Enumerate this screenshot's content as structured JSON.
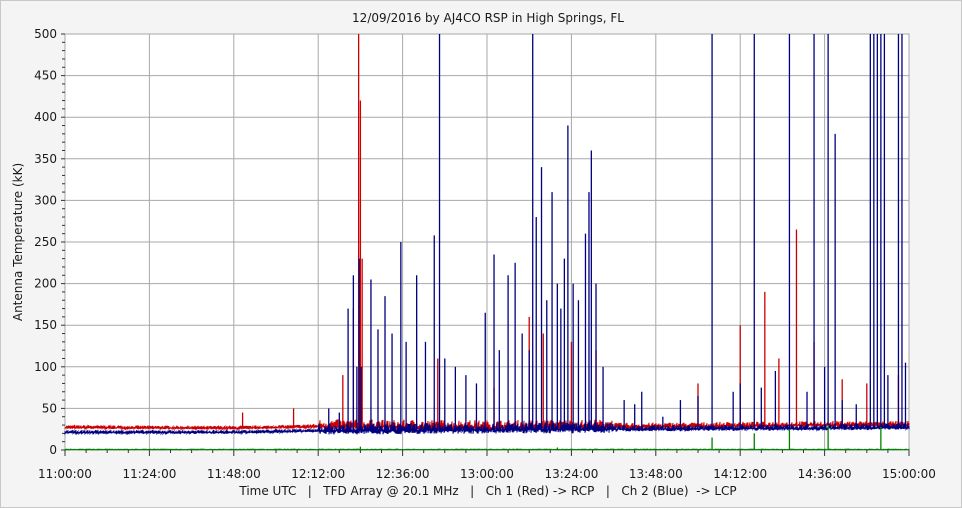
{
  "chart_data": {
    "type": "line",
    "title": "12/09/2016  by  AJ4CO RSP  in  High Springs, FL",
    "ylabel": "Antenna Temperature (kK)",
    "xlabel": "Time UTC   |   TFD Array @ 20.1 MHz   |   Ch 1 (Red) -> RCP   |   Ch 2 (Blue)  -> LCP",
    "ylim": [
      0,
      500
    ],
    "xlim": [
      "11:00:00",
      "15:00:00"
    ],
    "y_ticks": [
      "0",
      "50",
      "100",
      "150",
      "200",
      "250",
      "300",
      "350",
      "400",
      "450",
      "500"
    ],
    "x_ticks": [
      "11:00:00",
      "11:24:00",
      "11:48:00",
      "12:12:00",
      "12:36:00",
      "13:00:00",
      "13:24:00",
      "13:48:00",
      "14:12:00",
      "14:36:00",
      "15:00:00"
    ],
    "grid": true,
    "series": [
      {
        "name": "Ch 1 (Red)",
        "color": "#cc0000",
        "baseline": [
          [
            "11:00:00",
            27
          ],
          [
            "11:48:00",
            26
          ],
          [
            "12:12:00",
            28
          ],
          [
            "13:00:00",
            27
          ],
          [
            "13:48:00",
            28
          ],
          [
            "14:36:00",
            30
          ],
          [
            "15:00:00",
            30
          ]
        ],
        "bursts": [
          [
            "11:50:30",
            45
          ],
          [
            "12:05:00",
            50
          ],
          [
            "12:19:00",
            90
          ],
          [
            "12:22:00",
            170
          ],
          [
            "12:23:30",
            500
          ],
          [
            "12:24:00",
            420
          ],
          [
            "12:24:30",
            230
          ],
          [
            "12:46:00",
            110
          ],
          [
            "13:02:00",
            75
          ],
          [
            "13:12:00",
            160
          ],
          [
            "13:16:00",
            140
          ],
          [
            "13:24:00",
            130
          ],
          [
            "13:31:00",
            120
          ],
          [
            "14:00:00",
            80
          ],
          [
            "14:12:00",
            150
          ],
          [
            "14:19:00",
            190
          ],
          [
            "14:23:00",
            110
          ],
          [
            "14:28:00",
            265
          ],
          [
            "14:33:00",
            130
          ],
          [
            "14:41:00",
            85
          ],
          [
            "14:48:00",
            80
          ],
          [
            "14:57:00",
            90
          ]
        ]
      },
      {
        "name": "Ch 2 (Blue)",
        "color": "#000080",
        "baseline": [
          [
            "11:00:00",
            21
          ],
          [
            "11:48:00",
            21
          ],
          [
            "12:12:00",
            23
          ],
          [
            "13:00:00",
            24
          ],
          [
            "13:48:00",
            25
          ],
          [
            "14:36:00",
            26
          ],
          [
            "15:00:00",
            27
          ]
        ],
        "bursts": [
          [
            "12:15:00",
            50
          ],
          [
            "12:18:00",
            45
          ],
          [
            "12:20:30",
            170
          ],
          [
            "12:22:00",
            210
          ],
          [
            "12:23:00",
            100
          ],
          [
            "12:23:40",
            230
          ],
          [
            "12:24:10",
            100
          ],
          [
            "12:27:00",
            205
          ],
          [
            "12:29:00",
            145
          ],
          [
            "12:31:00",
            185
          ],
          [
            "12:33:00",
            140
          ],
          [
            "12:35:30",
            250
          ],
          [
            "12:37:00",
            130
          ],
          [
            "12:40:00",
            210
          ],
          [
            "12:42:30",
            130
          ],
          [
            "12:45:00",
            258
          ],
          [
            "12:46:30",
            500
          ],
          [
            "12:48:00",
            110
          ],
          [
            "12:51:00",
            100
          ],
          [
            "12:54:00",
            90
          ],
          [
            "12:57:00",
            80
          ],
          [
            "12:59:30",
            165
          ],
          [
            "13:02:00",
            235
          ],
          [
            "13:03:30",
            120
          ],
          [
            "13:06:00",
            210
          ],
          [
            "13:08:00",
            225
          ],
          [
            "13:10:00",
            140
          ],
          [
            "13:12:00",
            120
          ],
          [
            "13:13:00",
            500
          ],
          [
            "13:14:00",
            280
          ],
          [
            "13:15:30",
            340
          ],
          [
            "13:17:00",
            180
          ],
          [
            "13:18:30",
            310
          ],
          [
            "13:20:00",
            200
          ],
          [
            "13:21:00",
            170
          ],
          [
            "13:22:00",
            230
          ],
          [
            "13:23:00",
            390
          ],
          [
            "13:24:30",
            200
          ],
          [
            "13:26:00",
            180
          ],
          [
            "13:28:00",
            260
          ],
          [
            "13:29:00",
            310
          ],
          [
            "13:29:40",
            360
          ],
          [
            "13:31:00",
            200
          ],
          [
            "13:33:00",
            100
          ],
          [
            "13:39:00",
            60
          ],
          [
            "13:42:00",
            55
          ],
          [
            "13:44:00",
            70
          ],
          [
            "13:50:00",
            40
          ],
          [
            "13:55:00",
            60
          ],
          [
            "14:00:00",
            65
          ],
          [
            "14:04:00",
            500
          ],
          [
            "14:10:00",
            70
          ],
          [
            "14:12:00",
            80
          ],
          [
            "14:16:00",
            500
          ],
          [
            "14:18:00",
            75
          ],
          [
            "14:22:00",
            95
          ],
          [
            "14:26:00",
            500
          ],
          [
            "14:31:00",
            70
          ],
          [
            "14:33:00",
            500
          ],
          [
            "14:36:00",
            100
          ],
          [
            "14:37:00",
            500
          ],
          [
            "14:39:00",
            380
          ],
          [
            "14:41:00",
            60
          ],
          [
            "14:45:00",
            55
          ],
          [
            "14:49:00",
            500
          ],
          [
            "14:50:00",
            500
          ],
          [
            "14:51:00",
            500
          ],
          [
            "14:52:00",
            500
          ],
          [
            "14:53:00",
            500
          ],
          [
            "14:54:00",
            90
          ],
          [
            "14:57:00",
            500
          ],
          [
            "14:58:00",
            500
          ],
          [
            "14:59:00",
            105
          ]
        ]
      },
      {
        "name": "Ch 3 (Green)",
        "color": "#008000",
        "baseline": [
          [
            "11:00:00",
            0.5
          ],
          [
            "15:00:00",
            0.5
          ]
        ],
        "bursts": [
          [
            "12:24:00",
            4
          ],
          [
            "13:20:00",
            3
          ],
          [
            "14:04:00",
            15
          ],
          [
            "14:16:00",
            20
          ],
          [
            "14:26:00",
            25
          ],
          [
            "14:37:00",
            30
          ],
          [
            "14:52:00",
            28
          ]
        ]
      }
    ]
  }
}
